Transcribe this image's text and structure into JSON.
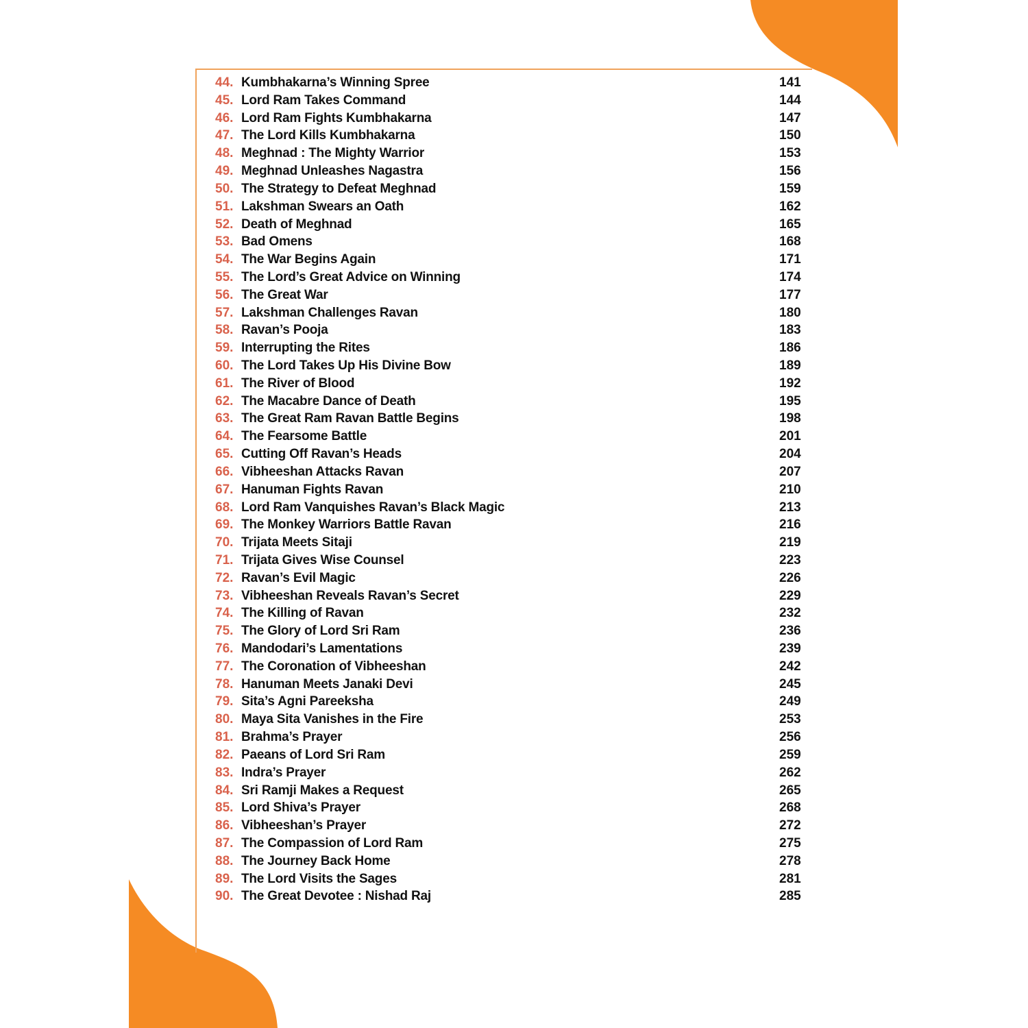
{
  "colors": {
    "accent_shape": "#f58b24",
    "frame_line": "#f0a25a",
    "chapter_number": "#d9624c",
    "text": "#111111"
  },
  "toc": [
    {
      "num": "44.",
      "title": "Kumbhakarna’s Winning Spree",
      "page": "141"
    },
    {
      "num": "45.",
      "title": "Lord Ram Takes Command",
      "page": "144"
    },
    {
      "num": "46.",
      "title": "Lord Ram Fights Kumbhakarna",
      "page": "147"
    },
    {
      "num": "47.",
      "title": "The Lord Kills Kumbhakarna",
      "page": "150"
    },
    {
      "num": "48.",
      "title": "Meghnad : The Mighty Warrior",
      "page": "153"
    },
    {
      "num": "49.",
      "title": "Meghnad Unleashes Nagastra",
      "page": "156"
    },
    {
      "num": "50.",
      "title": "The Strategy to Defeat Meghnad",
      "page": "159"
    },
    {
      "num": "51.",
      "title": "Lakshman Swears an Oath",
      "page": "162"
    },
    {
      "num": "52.",
      "title": "Death of Meghnad",
      "page": "165"
    },
    {
      "num": "53.",
      "title": "Bad Omens",
      "page": "168"
    },
    {
      "num": "54.",
      "title": "The War Begins Again",
      "page": "171"
    },
    {
      "num": "55.",
      "title": "The Lord’s Great Advice on Winning",
      "page": "174"
    },
    {
      "num": "56.",
      "title": "The Great War",
      "page": "177"
    },
    {
      "num": "57.",
      "title": "Lakshman Challenges Ravan",
      "page": "180"
    },
    {
      "num": "58.",
      "title": "Ravan’s Pooja",
      "page": "183"
    },
    {
      "num": "59.",
      "title": "Interrupting the Rites",
      "page": "186"
    },
    {
      "num": "60.",
      "title": "The Lord Takes Up His Divine Bow",
      "page": "189"
    },
    {
      "num": "61.",
      "title": "The River of Blood",
      "page": "192"
    },
    {
      "num": "62.",
      "title": "The Macabre Dance of Death",
      "page": "195"
    },
    {
      "num": "63.",
      "title": "The Great Ram Ravan Battle Begins",
      "page": "198"
    },
    {
      "num": "64.",
      "title": "The Fearsome Battle",
      "page": "201"
    },
    {
      "num": "65.",
      "title": "Cutting Off Ravan’s Heads",
      "page": "204"
    },
    {
      "num": "66.",
      "title": "Vibheeshan Attacks Ravan",
      "page": "207"
    },
    {
      "num": "67.",
      "title": "Hanuman Fights Ravan",
      "page": "210"
    },
    {
      "num": "68.",
      "title": "Lord Ram Vanquishes Ravan’s Black Magic",
      "page": "213"
    },
    {
      "num": "69.",
      "title": "The Monkey Warriors Battle Ravan",
      "page": "216"
    },
    {
      "num": "70.",
      "title": "Trijata Meets Sitaji",
      "page": "219"
    },
    {
      "num": "71.",
      "title": "Trijata Gives Wise Counsel",
      "page": "223"
    },
    {
      "num": "72.",
      "title": "Ravan’s Evil Magic",
      "page": "226"
    },
    {
      "num": "73.",
      "title": "Vibheeshan Reveals Ravan’s Secret",
      "page": "229"
    },
    {
      "num": "74.",
      "title": "The Killing of Ravan",
      "page": "232"
    },
    {
      "num": "75.",
      "title": "The Glory of Lord Sri Ram",
      "page": "236"
    },
    {
      "num": "76.",
      "title": "Mandodari’s Lamentations",
      "page": "239"
    },
    {
      "num": "77.",
      "title": "The Coronation of Vibheeshan",
      "page": "242"
    },
    {
      "num": "78.",
      "title": "Hanuman Meets Janaki Devi",
      "page": "245"
    },
    {
      "num": "79.",
      "title": "Sita’s Agni Pareeksha",
      "page": "249"
    },
    {
      "num": "80.",
      "title": "Maya Sita Vanishes in the Fire",
      "page": "253"
    },
    {
      "num": "81.",
      "title": "Brahma’s Prayer",
      "page": "256"
    },
    {
      "num": "82.",
      "title": "Paeans of Lord Sri Ram",
      "page": "259"
    },
    {
      "num": "83.",
      "title": "Indra’s Prayer",
      "page": "262"
    },
    {
      "num": "84.",
      "title": "Sri Ramji Makes a Request",
      "page": "265"
    },
    {
      "num": "85.",
      "title": "Lord Shiva’s Prayer",
      "page": "268"
    },
    {
      "num": "86.",
      "title": "Vibheeshan’s Prayer",
      "page": "272"
    },
    {
      "num": "87.",
      "title": "The Compassion of Lord Ram",
      "page": "275"
    },
    {
      "num": "88.",
      "title": "The Journey Back Home",
      "page": "278"
    },
    {
      "num": "89.",
      "title": "The Lord Visits the Sages",
      "page": "281"
    },
    {
      "num": "90.",
      "title": "The Great Devotee : Nishad Raj",
      "page": "285"
    }
  ]
}
